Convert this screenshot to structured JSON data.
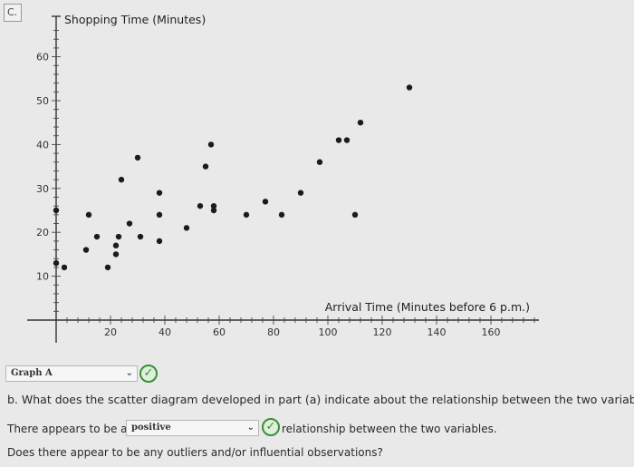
{
  "part_label": "C.",
  "chart_data": {
    "type": "scatter",
    "ylabel": "Shopping Time (Minutes)",
    "xlabel": "Arrival Time (Minutes before 6 p.m.)",
    "xlim": [
      0,
      170
    ],
    "ylim": [
      0,
      70
    ],
    "x_ticks": [
      20,
      40,
      60,
      80,
      100,
      120,
      140,
      160
    ],
    "y_ticks": [
      10,
      20,
      30,
      40,
      50,
      60
    ],
    "grid": false,
    "points": [
      {
        "x": 0,
        "y": 13
      },
      {
        "x": 0,
        "y": 25
      },
      {
        "x": 3,
        "y": 12
      },
      {
        "x": 12,
        "y": 24
      },
      {
        "x": 11,
        "y": 16
      },
      {
        "x": 15,
        "y": 19
      },
      {
        "x": 19,
        "y": 12
      },
      {
        "x": 22,
        "y": 15
      },
      {
        "x": 22,
        "y": 17
      },
      {
        "x": 23,
        "y": 19
      },
      {
        "x": 24,
        "y": 32
      },
      {
        "x": 27,
        "y": 22
      },
      {
        "x": 30,
        "y": 37
      },
      {
        "x": 31,
        "y": 19
      },
      {
        "x": 38,
        "y": 29
      },
      {
        "x": 38,
        "y": 24
      },
      {
        "x": 38,
        "y": 18
      },
      {
        "x": 48,
        "y": 21
      },
      {
        "x": 53,
        "y": 26
      },
      {
        "x": 55,
        "y": 35
      },
      {
        "x": 57,
        "y": 40
      },
      {
        "x": 58,
        "y": 25
      },
      {
        "x": 58,
        "y": 26
      },
      {
        "x": 70,
        "y": 24
      },
      {
        "x": 77,
        "y": 27
      },
      {
        "x": 83,
        "y": 24
      },
      {
        "x": 90,
        "y": 29
      },
      {
        "x": 97,
        "y": 36
      },
      {
        "x": 104,
        "y": 41
      },
      {
        "x": 107,
        "y": 41
      },
      {
        "x": 110,
        "y": 24
      },
      {
        "x": 112,
        "y": 45
      },
      {
        "x": 130,
        "y": 53
      }
    ]
  },
  "graph_select": {
    "value": "Graph A"
  },
  "question_b": "b. What does the scatter diagram developed in part (a) indicate about the relationship between the two variables?",
  "answer_line": {
    "prefix": "There appears to be a",
    "select_value": "positive",
    "suffix": "relationship between the two variables."
  },
  "question_outliers": "Does there appear to be any outliers and/or influential observations?"
}
